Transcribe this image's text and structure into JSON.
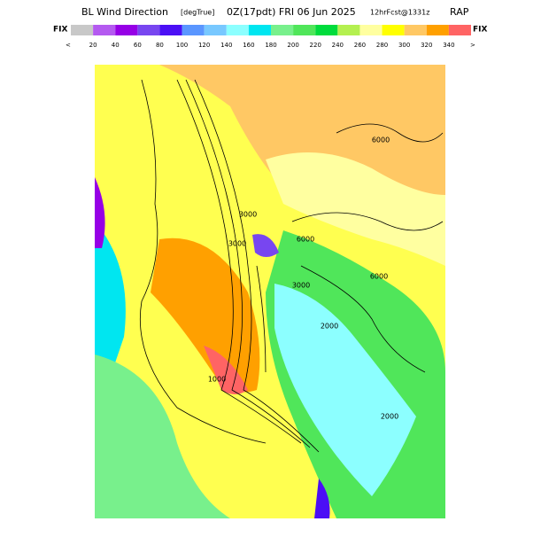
{
  "header": {
    "title": "BL Wind Direction",
    "units": "[degTrue]",
    "valid_time": "0Z(17pdt) FRI 06 Jun 2025",
    "forecast": "12hrFcst@1331z",
    "model": "RAP"
  },
  "colorbar": {
    "left_label": "FIX",
    "right_label": "FIX",
    "low_marker": "<",
    "high_marker": ">",
    "colors": [
      "#c8c8c8",
      "#b45af0",
      "#9600e6",
      "#7846f0",
      "#4b0ff5",
      "#5a96ff",
      "#78c8ff",
      "#8cffff",
      "#00e6f0",
      "#78f08c",
      "#50e65a",
      "#00dc3c",
      "#b4f050",
      "#ffffa0",
      "#ffff00",
      "#ffc864",
      "#ffa000",
      "#ff6464"
    ],
    "labels": [
      "20",
      "40",
      "60",
      "80",
      "100",
      "120",
      "140",
      "160",
      "180",
      "200",
      "220",
      "240",
      "260",
      "280",
      "300",
      "320",
      "340"
    ]
  },
  "map": {
    "contour_labels": [
      "6000",
      "6000",
      "6000",
      "3000",
      "3000",
      "3000",
      "2000",
      "2000",
      "1000"
    ]
  }
}
